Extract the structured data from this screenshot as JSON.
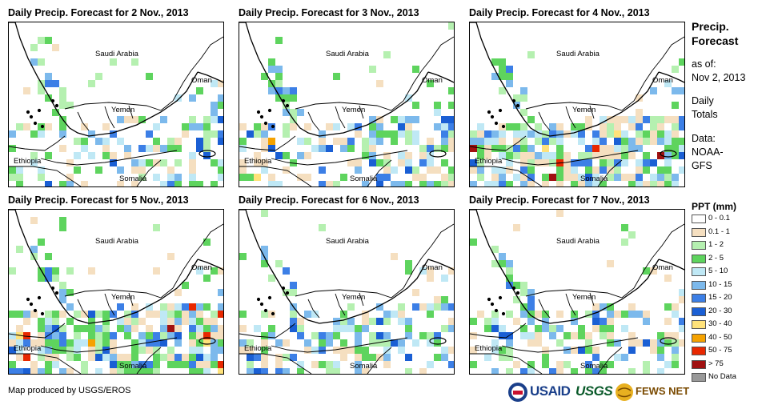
{
  "panels": [
    {
      "title": "Daily Precip. Forecast for 2 Nov., 2013",
      "day": 0
    },
    {
      "title": "Daily Precip. Forecast for 3 Nov., 2013",
      "day": 1
    },
    {
      "title": "Daily Precip. Forecast for 4 Nov., 2013",
      "day": 2
    },
    {
      "title": "Daily Precip. Forecast for 5 Nov., 2013",
      "day": 3
    },
    {
      "title": "Daily Precip. Forecast for 6 Nov., 2013",
      "day": 4
    },
    {
      "title": "Daily Precip. Forecast for 7 Nov., 2013",
      "day": 5
    }
  ],
  "map_labels": {
    "saudi": "Saudi Arabia",
    "oman": "Oman",
    "yemen": "Yemen",
    "ethiopia": "Ethiopia",
    "somalia": "Somalia"
  },
  "side_panel": {
    "title_line1": "Precip.",
    "title_line2": "Forecast",
    "asof_line1": "as of:",
    "asof_line2": "Nov 2, 2013",
    "totals_line1": "Daily",
    "totals_line2": "Totals",
    "data_line1": "Data:",
    "data_line2": "NOAA-",
    "data_line3": "GFS"
  },
  "legend": {
    "title": "PPT (mm)",
    "items": [
      {
        "label": "0 - 0.1",
        "color": "#ffffff"
      },
      {
        "label": "0.1 - 1",
        "color": "#f5dfc0"
      },
      {
        "label": "1 - 2",
        "color": "#b5f0b0"
      },
      {
        "label": "2 - 5",
        "color": "#5ed45e"
      },
      {
        "label": "5 - 10",
        "color": "#bfe8f5"
      },
      {
        "label": "10 - 15",
        "color": "#7cb9ec"
      },
      {
        "label": "15 - 20",
        "color": "#3c7fe6"
      },
      {
        "label": "20 - 30",
        "color": "#1a5fd4"
      },
      {
        "label": "30 - 40",
        "color": "#ffe27a"
      },
      {
        "label": "40 - 50",
        "color": "#f5a200"
      },
      {
        "label": "50 - 75",
        "color": "#e82800"
      },
      {
        "label": "> 75",
        "color": "#a01010"
      },
      {
        "label": "No Data",
        "color": "#999999"
      }
    ]
  },
  "credit": "Map produced by USGS/EROS",
  "logos": {
    "usaid": "USAID",
    "usgs": "USGS",
    "fewsnet": "FEWS NET"
  }
}
